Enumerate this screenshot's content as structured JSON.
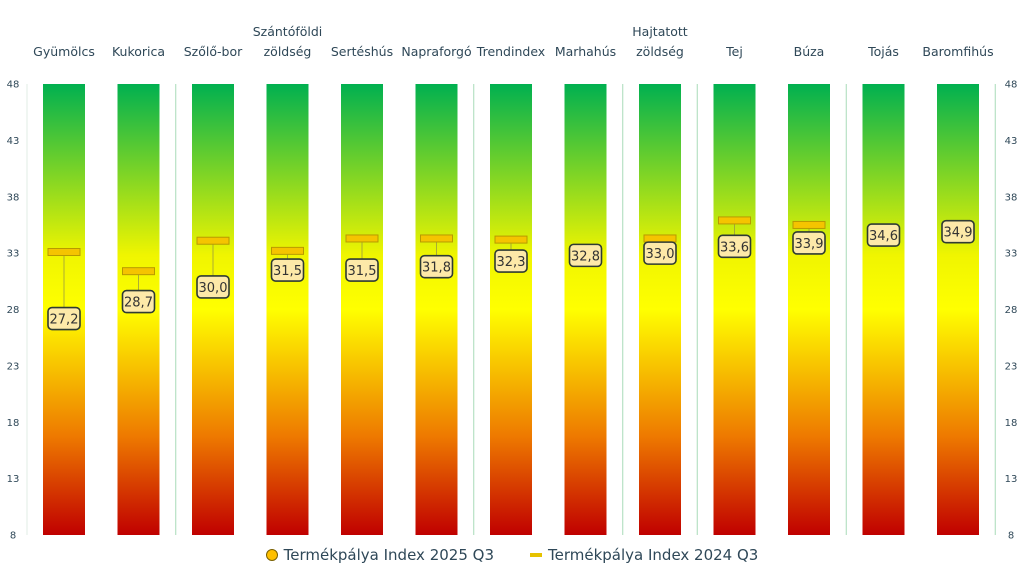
{
  "chart_data": {
    "type": "bar",
    "title": "",
    "xlabel": "",
    "ylabel": "",
    "ylim": [
      8,
      48
    ],
    "yticks": [
      8,
      13,
      18,
      23,
      28,
      33,
      38,
      43,
      48
    ],
    "y_axis_sides": [
      "left",
      "right"
    ],
    "categories": [
      "Gyümölcs",
      "Kukorica",
      "Szőlő-bor",
      "Szántóföldi zöldség",
      "Sertéshús",
      "Napraforgó",
      "Trendindex",
      "Marhahús",
      "Hajtatott zöldség",
      "Tej",
      "Búza",
      "Tojás",
      "Baromfihús"
    ],
    "category_lines": [
      [
        "Gyümölcs"
      ],
      [
        "Kukorica"
      ],
      [
        "Szőlő-bor"
      ],
      [
        "Szántóföldi",
        "zöldség"
      ],
      [
        "Sertéshús"
      ],
      [
        "Napraforgó"
      ],
      [
        "Trendindex"
      ],
      [
        "Marhahús"
      ],
      [
        "Hajtatott",
        "zöldség"
      ],
      [
        "Tej"
      ],
      [
        "Búza"
      ],
      [
        "Tojás"
      ],
      [
        "Baromfihús"
      ]
    ],
    "background_gradient": {
      "bottom": "#c00000",
      "middle": "#ffff00",
      "top": "#00b050"
    },
    "series": [
      {
        "name": "Termékpálya Index 2025 Q3",
        "marker": "dot",
        "color": "#ffc000",
        "values": [
          27.2,
          28.7,
          30.0,
          31.5,
          31.5,
          31.8,
          32.3,
          32.8,
          33.0,
          33.6,
          33.9,
          34.6,
          34.9
        ],
        "labels": [
          "27,2",
          "28,7",
          "30,0",
          "31,5",
          "31,5",
          "31,8",
          "32,3",
          "32,8",
          "33,0",
          "33,6",
          "33,9",
          "34,6",
          "34,9"
        ]
      },
      {
        "name": "Termékpálya Index 2024 Q3",
        "marker": "dash",
        "color": "#e6c200",
        "values": [
          33.1,
          31.4,
          34.1,
          33.2,
          34.3,
          34.3,
          34.2,
          null,
          34.3,
          35.9,
          35.5,
          null,
          null
        ]
      }
    ],
    "group_separators_after": [
      "Kukorica",
      "Napraforgó",
      "Marhahús",
      "Hajtatott zöldség",
      "Búza",
      "Baromfihús"
    ],
    "legend": {
      "position": "bottom",
      "entries": [
        "Termékpálya Index 2025 Q3",
        "Termékpálya Index 2024 Q3"
      ]
    }
  }
}
